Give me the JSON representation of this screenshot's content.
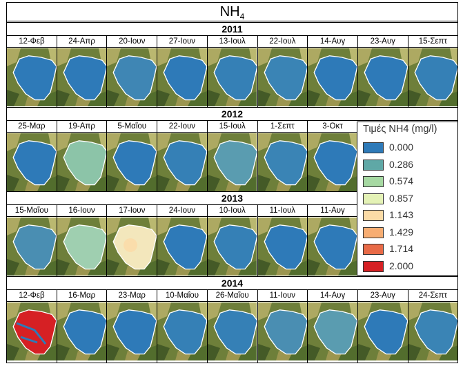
{
  "title": "NH",
  "title_sub": "4",
  "legend": {
    "title": "Τιμές NH4 (mg/l)",
    "items": [
      {
        "label": "0.000",
        "color": "#2e7ab8"
      },
      {
        "label": "0.286",
        "color": "#5fa8a6"
      },
      {
        "label": "0.574",
        "color": "#a6d9a2"
      },
      {
        "label": "0.857",
        "color": "#e4f2b6"
      },
      {
        "label": "1.143",
        "color": "#fbdba6"
      },
      {
        "label": "1.429",
        "color": "#f7ad72"
      },
      {
        "label": "1.714",
        "color": "#e86a47"
      },
      {
        "label": "2.000",
        "color": "#d62024"
      }
    ]
  },
  "years": [
    {
      "year": "2011",
      "dates": [
        "12-Φεβ",
        "24-Απρ",
        "20-Ιουν",
        "27-Ιουν",
        "13-Ιουλ",
        "22-Ιουλ",
        "14-Αυγ",
        "23-Αυγ",
        "15-Σεπτ"
      ],
      "fills": [
        "#2e7ab8",
        "#2e7ab8",
        "#3f86b4",
        "#2e7ab8",
        "#3580b6",
        "#3a84b5",
        "#2e7ab8",
        "#2e7ab8",
        "#3580b6"
      ]
    },
    {
      "year": "2012",
      "dates": [
        "25-Μαρ",
        "19-Απρ",
        "5-Μαΐου",
        "22-Ιουν",
        "15-Ιουλ",
        "1-Σεπτ",
        "3-Οκτ"
      ],
      "fills": [
        "#2e7ab8",
        "#8cc4a8",
        "#2e7ab8",
        "#3580b6",
        "#5a9cb0",
        "#3a84b5",
        "#2e7ab8"
      ]
    },
    {
      "year": "2013",
      "dates": [
        "15-Μαΐου",
        "16-Ιουν",
        "17-Ιουν",
        "24-Ιουν",
        "10-Ιουλ",
        "11-Ιουλ",
        "11-Αυγ"
      ],
      "fills": [
        "#4a8eb2",
        "#9fcfb0",
        "#f3e7bc",
        "#2e7ab8",
        "#3580b6",
        "#2e7ab8",
        "#2e7ab8"
      ]
    },
    {
      "year": "2014",
      "dates": [
        "12-Φεβ",
        "16-Μαρ",
        "23-Μαρ",
        "10-Μαΐου",
        "26-Μαΐου",
        "11-Ιουν",
        "14-Αυγ",
        "23-Αυγ",
        "24-Σεπτ"
      ],
      "fills": [
        "#d62024",
        "#2e7ab8",
        "#2e7ab8",
        "#3580b6",
        "#3580b6",
        "#4a8eb2",
        "#5a9cb0",
        "#2e7ab8",
        "#3a84b5"
      ]
    }
  ]
}
